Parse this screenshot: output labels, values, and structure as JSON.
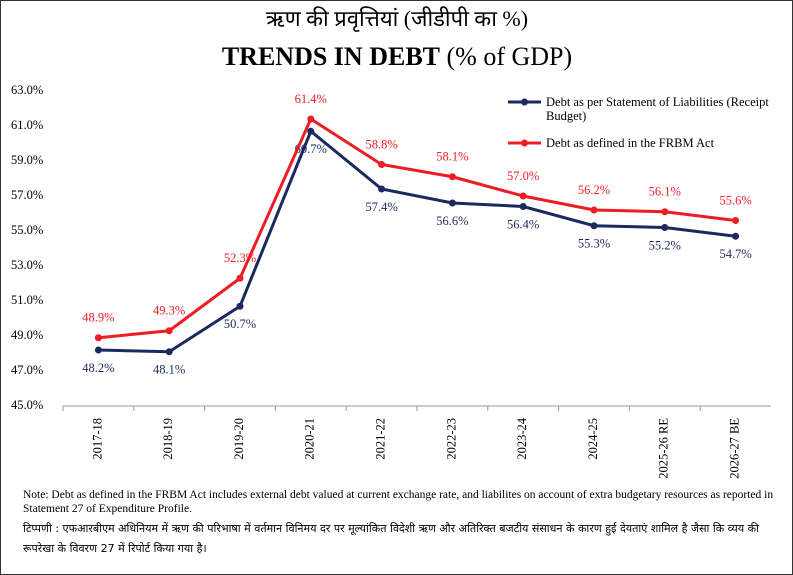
{
  "chart_data": {
    "type": "line",
    "title_hindi": "ऋण की प्रवृत्तियां (जीडीपी का %)",
    "title": "TRENDS IN DEBT",
    "title_suffix": "(% of GDP)",
    "categories": [
      "2017-18",
      "2018-19",
      "2019-20",
      "2020-21",
      "2021-22",
      "2022-23",
      "2023-24",
      "2024-25",
      "2025-26 RE",
      "2026-27 BE"
    ],
    "series": [
      {
        "name": "Debt as per Statement of Liabilities (Receipt Budget)",
        "color": "#1b2a5e",
        "values": [
          48.2,
          48.1,
          50.7,
          60.7,
          57.4,
          56.6,
          56.4,
          55.3,
          55.2,
          54.7
        ],
        "value_labels": [
          "48.2%",
          "48.1%",
          "50.7%",
          "60.7%",
          "57.4%",
          "56.6%",
          "56.4%",
          "55.3%",
          "55.2%",
          "54.7%"
        ]
      },
      {
        "name": "Debt as defined in the FRBM Act",
        "color": "#ee1c25",
        "values": [
          48.9,
          49.3,
          52.3,
          61.4,
          58.8,
          58.1,
          57.0,
          56.2,
          56.1,
          55.6
        ],
        "value_labels": [
          "48.9%",
          "49.3%",
          "52.3%",
          "61.4%",
          "58.8%",
          "58.1%",
          "57.0%",
          "56.2%",
          "56.1%",
          "55.6%"
        ]
      }
    ],
    "ylim": [
      45,
      63
    ],
    "yticks": [
      {
        "value": 45,
        "label": "45.0%"
      },
      {
        "value": 47,
        "label": "47.0%"
      },
      {
        "value": 49,
        "label": "49.0%"
      },
      {
        "value": 51,
        "label": "51.0%"
      },
      {
        "value": 53,
        "label": "53.0%"
      },
      {
        "value": 55,
        "label": "55.0%"
      },
      {
        "value": 57,
        "label": "57.0%"
      },
      {
        "value": 59,
        "label": "59.0%"
      },
      {
        "value": 61,
        "label": "61.0%"
      },
      {
        "value": 63,
        "label": "63.0%"
      }
    ],
    "grid": false,
    "legend": "top-right",
    "note": "Note: Debt as defined in the FRBM Act includes external debt valued at current exchange rate, and liabilites on account of extra budgetary resources as reported in Statement 27 of Expenditure Profile.",
    "note_hindi": "टिप्पणी :  एफआरबीएम अधिनियम में ऋण की परिभाषा में वर्तमान विनिमय दर पर मूल्यांकित विदेशी ऋण और अतिरिक्त बजटीय संसाधन के कारण हुई देयताएं शामिल है जैसा कि व्यय की रूपरेखा के विवरण 27 में रिपोर्ट किया गया है।"
  }
}
